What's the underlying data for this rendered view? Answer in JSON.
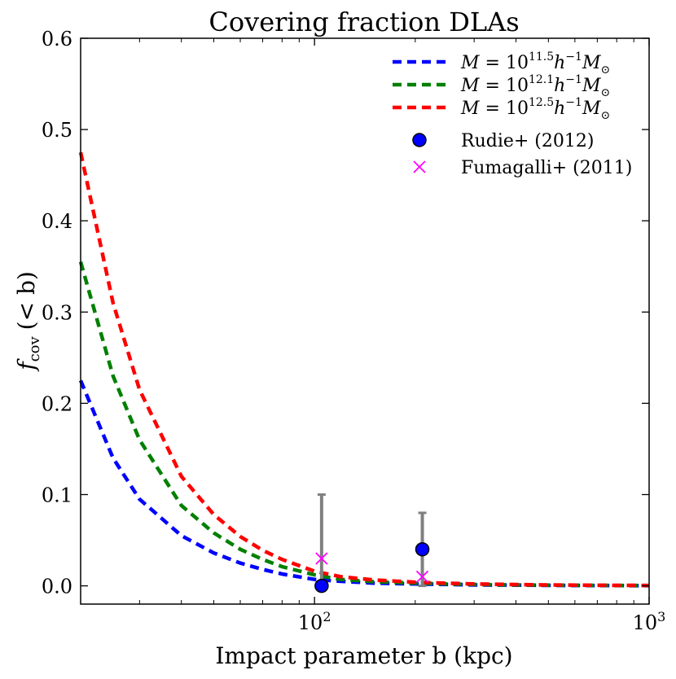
{
  "chart_data": {
    "type": "line",
    "title": "Covering fraction DLAs",
    "xlabel": "Impact parameter b (kpc)",
    "ylabel": "f_cov (< b)",
    "ylabel_parts": {
      "main": "f",
      "sub": "cov",
      "rest": "(< b)"
    },
    "xscale": "log",
    "xlim": [
      20,
      1000
    ],
    "ylim": [
      -0.02,
      0.6
    ],
    "xticks": [
      {
        "value": 100,
        "base": "10",
        "exp": "2"
      },
      {
        "value": 1000,
        "base": "10",
        "exp": "3"
      }
    ],
    "yticks": [
      0.0,
      0.1,
      0.2,
      0.3,
      0.4,
      0.5,
      0.6
    ],
    "ytick_labels": [
      "0.0",
      "0.1",
      "0.2",
      "0.3",
      "0.4",
      "0.5",
      "0.6"
    ],
    "grid": false,
    "legend_position": "top-right",
    "x": [
      20,
      25,
      30,
      40,
      50,
      60,
      70,
      80,
      100,
      120,
      150,
      200,
      250,
      300,
      400,
      500,
      700,
      1000
    ],
    "series": [
      {
        "name": "M = 10^{11.5} h^{-1} M_⊙",
        "legend": {
          "prefix": "M = 10",
          "exp": "11.5",
          "mid": "h",
          "hexp": "−1",
          "tail": "M",
          "sub": "⊙"
        },
        "color": "#0000ff",
        "style": "dashed",
        "values": [
          0.225,
          0.14,
          0.095,
          0.055,
          0.036,
          0.025,
          0.018,
          0.013,
          0.007,
          0.005,
          0.003,
          0.002,
          0.0015,
          0.001,
          0.0008,
          0.0005,
          0.0003,
          0.0002
        ]
      },
      {
        "name": "M = 10^{12.1} h^{-1} M_⊙",
        "legend": {
          "prefix": "M = 10",
          "exp": "12.1",
          "mid": "h",
          "hexp": "−1",
          "tail": "M",
          "sub": "⊙"
        },
        "color": "#008000",
        "style": "dashed",
        "values": [
          0.355,
          0.23,
          0.16,
          0.088,
          0.058,
          0.04,
          0.029,
          0.021,
          0.012,
          0.007,
          0.0045,
          0.003,
          0.002,
          0.0015,
          0.001,
          0.0007,
          0.0005,
          0.0003
        ]
      },
      {
        "name": "M = 10^{12.5} h^{-1} M_⊙",
        "legend": {
          "prefix": "M = 10",
          "exp": "12.5",
          "mid": "h",
          "hexp": "−1",
          "tail": "M",
          "sub": "⊙"
        },
        "color": "#ff0000",
        "style": "dashed",
        "values": [
          0.475,
          0.31,
          0.215,
          0.12,
          0.078,
          0.054,
          0.039,
          0.029,
          0.016,
          0.01,
          0.0065,
          0.004,
          0.0028,
          0.002,
          0.0014,
          0.001,
          0.0006,
          0.0004
        ]
      }
    ],
    "points": [
      {
        "name": "Rudie+ (2012)",
        "marker": "circle",
        "color": "#0000ff",
        "errorbar_color": "#808080",
        "data": [
          {
            "x": 105,
            "y": 0.0,
            "yerr_low": 0.0,
            "yerr_high": 0.1
          },
          {
            "x": 210,
            "y": 0.04,
            "yerr_low": 0.04,
            "yerr_high": 0.04
          }
        ]
      },
      {
        "name": "Fumagalli+ (2011)",
        "marker": "x",
        "color": "#ff00ff",
        "data": [
          {
            "x": 105,
            "y": 0.03
          },
          {
            "x": 210,
            "y": 0.01
          }
        ]
      }
    ]
  }
}
